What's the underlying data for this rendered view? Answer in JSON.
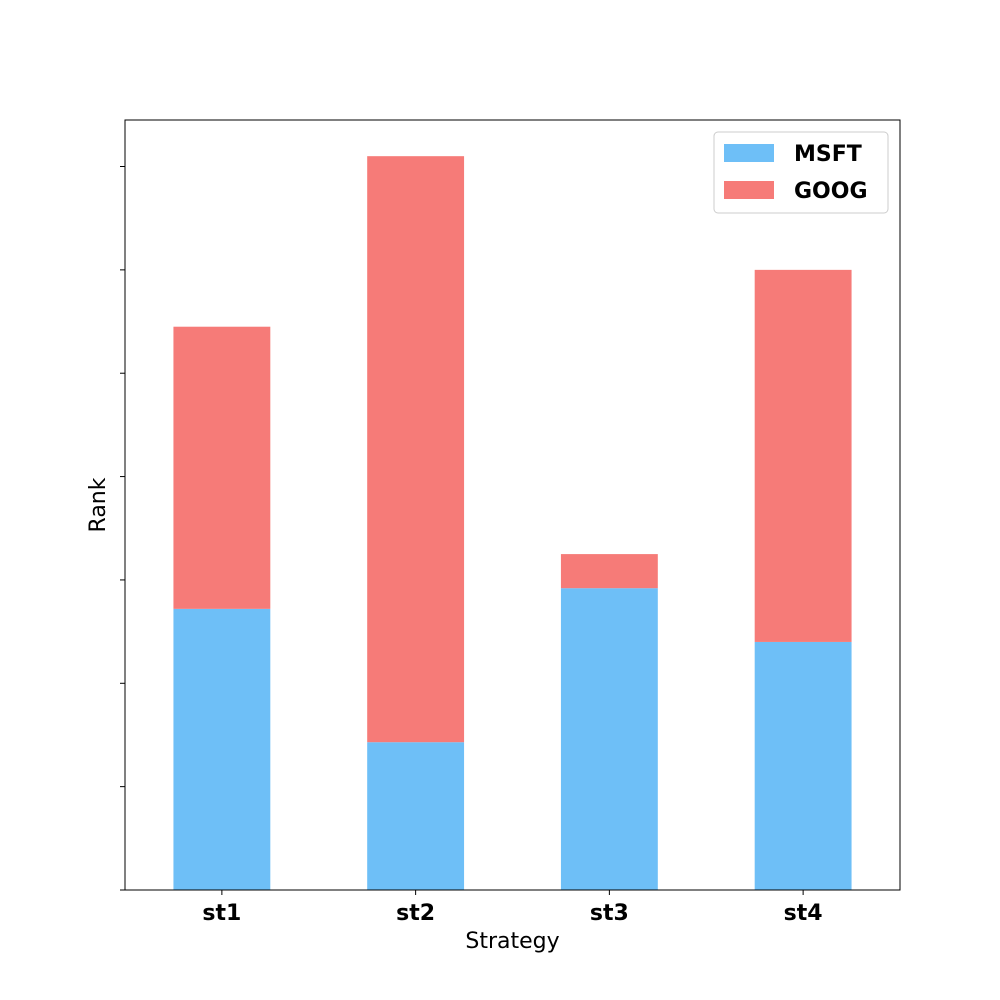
{
  "chart_data": {
    "type": "bar",
    "stacked": true,
    "categories": [
      "st1",
      "st2",
      "st3",
      "st4"
    ],
    "series": [
      {
        "name": "MSFT",
        "color": "#6ebff7",
        "values": [
          2.72,
          1.43,
          2.92,
          2.4
        ]
      },
      {
        "name": "GOOG",
        "color": "#f67b78",
        "values": [
          2.73,
          5.67,
          0.33,
          3.6
        ]
      }
    ],
    "xlabel": "Strategy",
    "ylabel": "Rank",
    "ylim": [
      0,
      7.45
    ],
    "ytick_values": [
      0,
      1,
      2,
      3,
      4,
      5,
      6,
      7
    ],
    "ytick_labels_visible": false,
    "grid": false,
    "legend_position": "top-right"
  }
}
